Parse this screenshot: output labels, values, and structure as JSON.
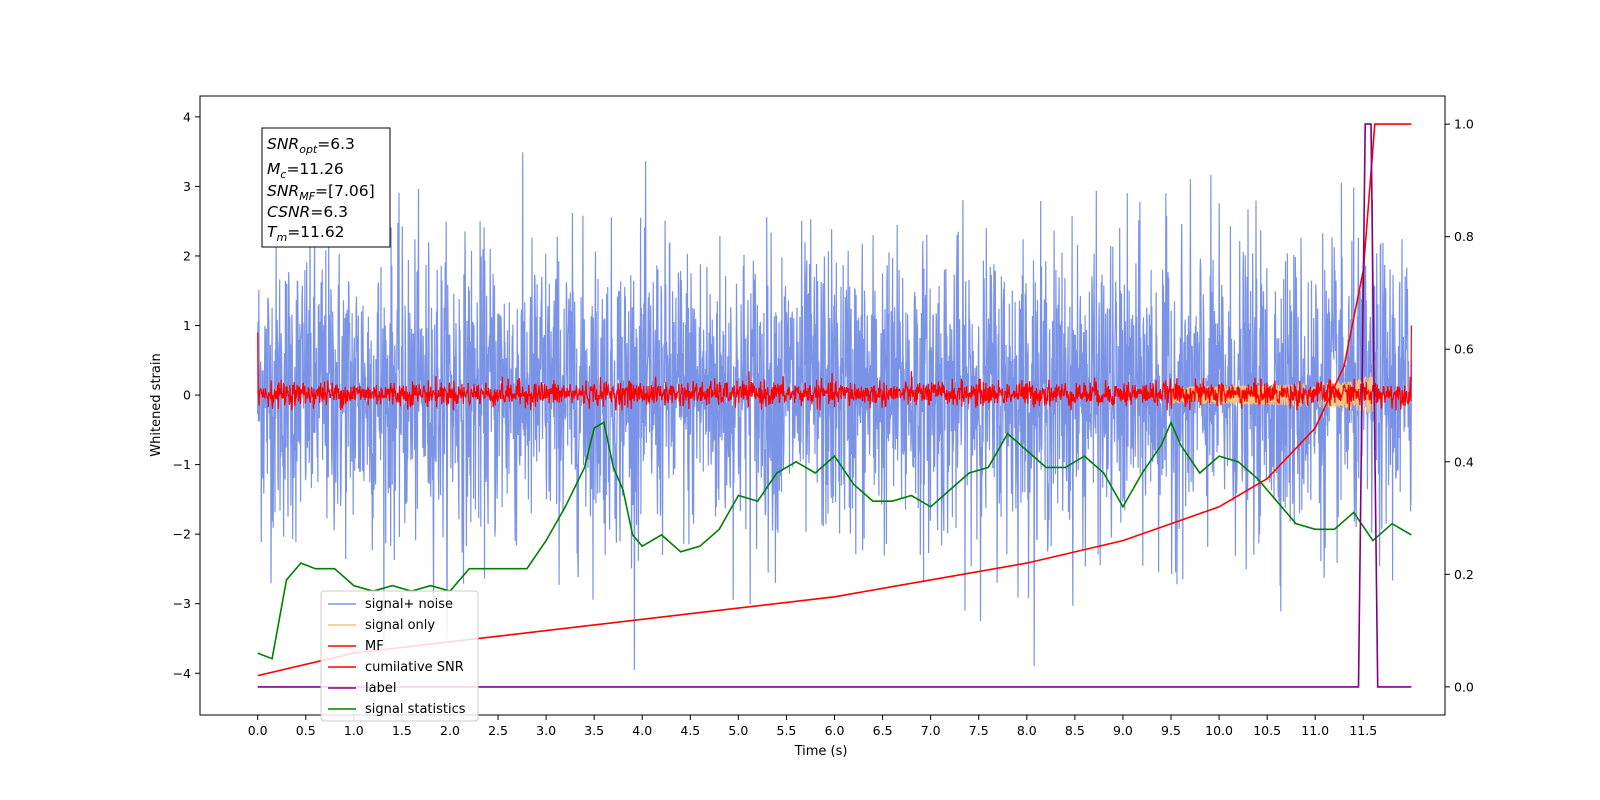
{
  "chart_data": {
    "type": "line",
    "xlabel": "Time (s)",
    "ylabel": "Whitened strain",
    "xlim": [
      -0.6,
      12.35
    ],
    "ylim_left": [
      -4.6,
      4.3
    ],
    "ylim_right": [
      -0.05,
      1.05
    ],
    "x_ticks": [
      "0.0",
      "0.5",
      "1.0",
      "1.5",
      "2.0",
      "2.5",
      "3.0",
      "3.5",
      "4.0",
      "4.5",
      "5.0",
      "5.5",
      "6.0",
      "6.5",
      "7.0",
      "7.5",
      "8.0",
      "8.5",
      "9.0",
      "9.5",
      "10.0",
      "10.5",
      "11.0",
      "11.5"
    ],
    "y_ticks_left": [
      "4",
      "3",
      "2",
      "1",
      "0",
      "−1",
      "−2",
      "−3",
      "−4"
    ],
    "y_ticks_right": [
      "1.0",
      "0.8",
      "0.6",
      "0.4",
      "0.2",
      "0.0"
    ],
    "info_box": {
      "snr_opt": "=6.3",
      "mc": "=11.26",
      "snr_mf": "=[7.06]",
      "csnr": "=6.3",
      "tm": "=11.62"
    },
    "series": [
      {
        "name": "signal+ noise",
        "axis": "left",
        "color": "#7b93e6",
        "description_range": [
          -3.9,
          3.9
        ]
      },
      {
        "name": "signal only",
        "axis": "left",
        "color": "#f5c37a",
        "chirp_end": 11.62
      },
      {
        "name": "MF",
        "axis": "left",
        "color": "#ff0000",
        "noise_band": [
          -0.2,
          0.4
        ]
      },
      {
        "name": "cumilative SNR",
        "axis": "right",
        "color": "#ff0000",
        "x": [
          0.0,
          1.0,
          2.0,
          3.0,
          4.0,
          5.0,
          6.0,
          7.0,
          8.0,
          9.0,
          9.5,
          10.0,
          10.5,
          11.0,
          11.3,
          11.5,
          11.62,
          12.0
        ],
        "values": [
          0.02,
          0.06,
          0.08,
          0.1,
          0.12,
          0.14,
          0.16,
          0.19,
          0.22,
          0.26,
          0.29,
          0.32,
          0.37,
          0.46,
          0.57,
          0.74,
          1.0,
          1.0
        ]
      },
      {
        "name": "label",
        "axis": "right",
        "color": "#800080",
        "x": [
          0.0,
          11.45,
          11.52,
          11.58,
          11.65,
          12.0
        ],
        "values": [
          0.0,
          0.0,
          1.0,
          1.0,
          0.0,
          0.0
        ]
      },
      {
        "name": "signal statistics",
        "axis": "right",
        "color": "#008000",
        "x": [
          0.0,
          0.15,
          0.3,
          0.45,
          0.6,
          0.8,
          1.0,
          1.2,
          1.4,
          1.6,
          1.8,
          2.0,
          2.2,
          2.4,
          2.6,
          2.8,
          3.0,
          3.2,
          3.4,
          3.5,
          3.6,
          3.7,
          3.8,
          3.9,
          4.0,
          4.2,
          4.4,
          4.6,
          4.8,
          5.0,
          5.2,
          5.4,
          5.6,
          5.8,
          6.0,
          6.2,
          6.4,
          6.6,
          6.8,
          7.0,
          7.2,
          7.4,
          7.6,
          7.8,
          8.0,
          8.2,
          8.4,
          8.6,
          8.8,
          9.0,
          9.2,
          9.4,
          9.5,
          9.6,
          9.8,
          10.0,
          10.2,
          10.4,
          10.6,
          10.8,
          11.0,
          11.2,
          11.4,
          11.6,
          11.8,
          12.0
        ],
        "values": [
          0.06,
          0.05,
          0.19,
          0.22,
          0.21,
          0.21,
          0.18,
          0.17,
          0.18,
          0.17,
          0.18,
          0.17,
          0.21,
          0.21,
          0.21,
          0.21,
          0.26,
          0.32,
          0.39,
          0.46,
          0.47,
          0.39,
          0.35,
          0.27,
          0.25,
          0.27,
          0.24,
          0.25,
          0.28,
          0.34,
          0.33,
          0.38,
          0.4,
          0.38,
          0.41,
          0.36,
          0.33,
          0.33,
          0.34,
          0.32,
          0.35,
          0.38,
          0.39,
          0.45,
          0.42,
          0.39,
          0.39,
          0.41,
          0.38,
          0.32,
          0.38,
          0.43,
          0.47,
          0.43,
          0.38,
          0.41,
          0.4,
          0.37,
          0.33,
          0.29,
          0.28,
          0.28,
          0.31,
          0.26,
          0.29,
          0.27
        ]
      }
    ],
    "legend_position": "lower-left",
    "grid": false
  }
}
